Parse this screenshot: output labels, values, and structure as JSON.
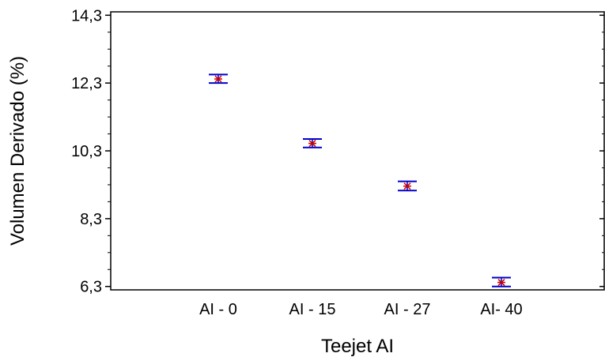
{
  "chart_data": {
    "type": "scatter",
    "xlabel": "Teejet AI",
    "ylabel": "Volumen Derivado (%)",
    "categories": [
      "AI - 0",
      "AI - 15",
      "AI - 27",
      "AI- 40"
    ],
    "y_ticks": [
      "14,3",
      "12,3",
      "10,3",
      "8,3",
      "6,3"
    ],
    "y_tick_values": [
      14.3,
      12.3,
      10.3,
      8.3,
      6.3
    ],
    "ylim": [
      6.2,
      14.4
    ],
    "series": [
      {
        "values": [
          12.42,
          10.52,
          9.26,
          6.42
        ],
        "err_low": [
          12.3,
          10.4,
          9.13,
          6.3
        ],
        "err_high": [
          12.55,
          10.65,
          9.4,
          6.56
        ]
      }
    ],
    "grid": false,
    "legend": "none",
    "colors": {
      "errorbar": "#0000cc",
      "marker": "#cc0000",
      "axis": "#000000"
    }
  }
}
